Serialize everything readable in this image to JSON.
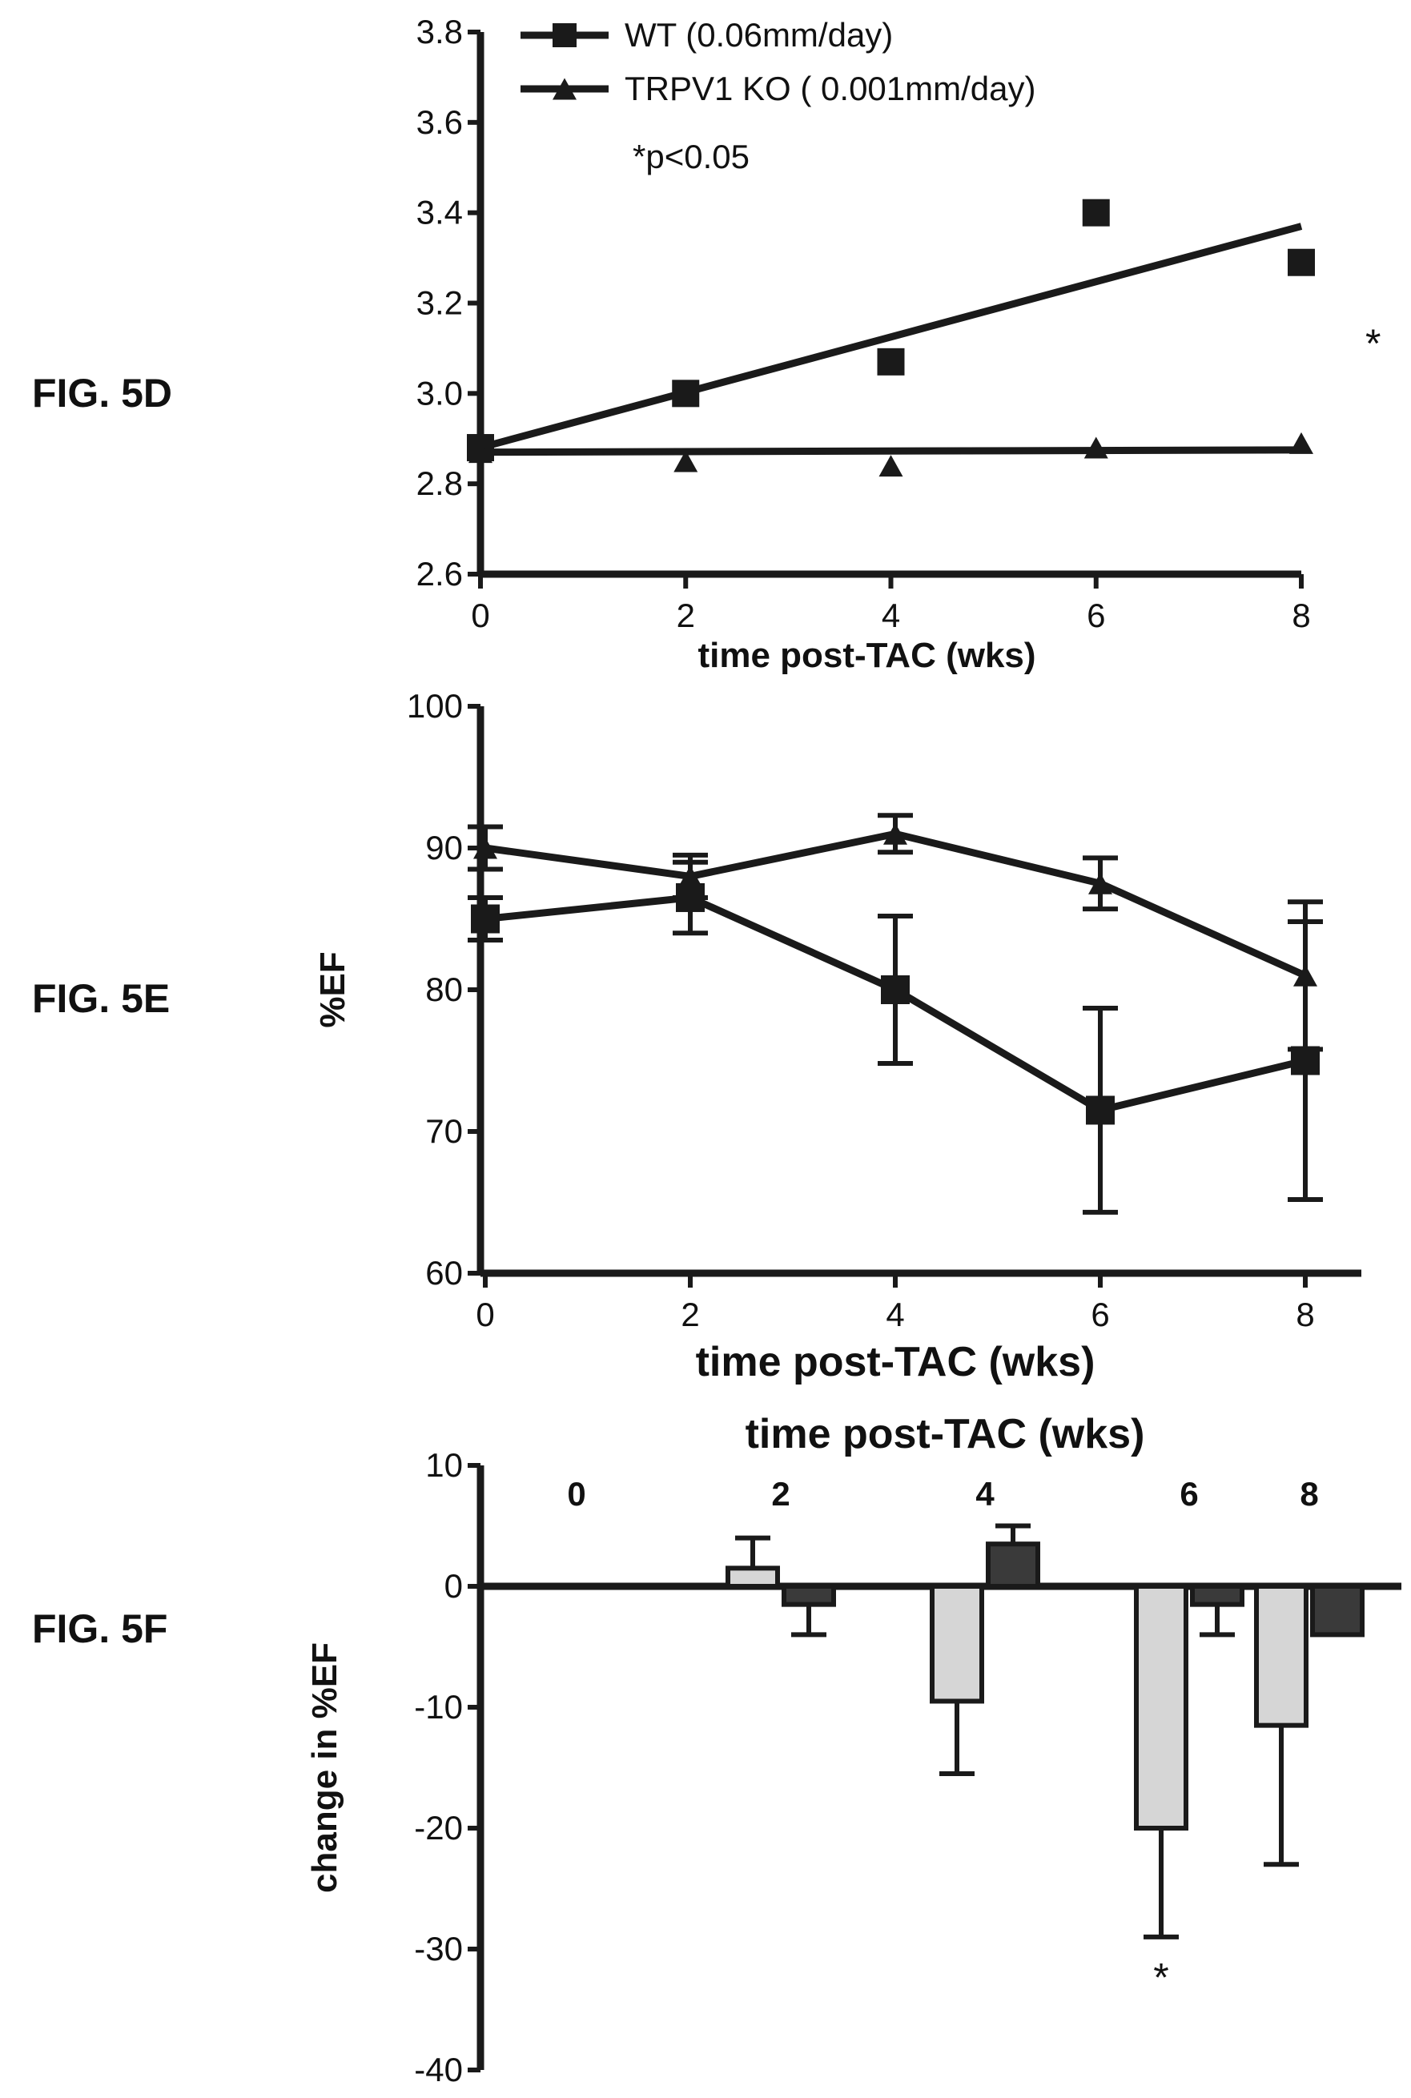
{
  "panels": [
    {
      "id": "5D",
      "label": "FIG. 5D"
    },
    {
      "id": "5E",
      "label": "FIG. 5E"
    },
    {
      "id": "5F",
      "label": "FIG. 5F"
    }
  ],
  "chart_data": [
    {
      "panel": "FIG. 5D",
      "type": "scatter",
      "xlabel": "time post-TAC (wks)",
      "ylabel": "",
      "xlim": [
        0,
        8
      ],
      "ylim": [
        2.6,
        3.8
      ],
      "xticks": [
        0,
        2,
        4,
        6,
        8
      ],
      "yticks": [
        2.6,
        2.8,
        3.0,
        3.2,
        3.4,
        3.6,
        3.8
      ],
      "series": [
        {
          "name": "WT (0.06mm/day)",
          "marker": "square",
          "x": [
            0,
            2,
            4,
            6,
            8
          ],
          "y": [
            2.88,
            3.0,
            3.07,
            3.4,
            3.29
          ],
          "fit": {
            "x": [
              0,
              8
            ],
            "y": [
              2.88,
              3.37
            ]
          }
        },
        {
          "name": "TRPV1 KO ( 0.001mm/day)",
          "marker": "triangle",
          "x": [
            0,
            2,
            4,
            6,
            8
          ],
          "y": [
            2.87,
            2.85,
            2.84,
            2.88,
            2.89
          ],
          "fit": {
            "x": [
              0,
              8
            ],
            "y": [
              2.87,
              2.875
            ]
          }
        }
      ],
      "legend_note": "*p<0.05",
      "annotations": [
        {
          "text": "*",
          "at_x": 8.7,
          "at_y": 3.08
        }
      ]
    },
    {
      "panel": "FIG. 5E",
      "type": "line",
      "xlabel": "time post-TAC (wks)",
      "ylabel": "%EF",
      "xlim": [
        0,
        8
      ],
      "ylim": [
        60,
        100
      ],
      "xticks": [
        0,
        2,
        4,
        6,
        8
      ],
      "yticks": [
        60,
        70,
        80,
        90,
        100
      ],
      "series": [
        {
          "name": "WT",
          "marker": "square",
          "x": [
            0,
            2,
            4,
            6,
            8
          ],
          "y": [
            85,
            86.5,
            80,
            71.5,
            75
          ],
          "err": [
            1.5,
            2.5,
            5.2,
            7.2,
            9.8
          ]
        },
        {
          "name": "TRPV1 KO",
          "marker": "triangle",
          "x": [
            0,
            2,
            4,
            6,
            8
          ],
          "y": [
            90,
            88,
            91,
            87.5,
            81
          ],
          "err": [
            1.5,
            1.5,
            1.3,
            1.8,
            5.2
          ]
        }
      ]
    },
    {
      "panel": "FIG. 5F",
      "type": "bar",
      "xlabel": "time post-TAC (wks)",
      "ylabel": "change in %EF",
      "ylim": [
        -40,
        10
      ],
      "yticks": [
        -40,
        -30,
        -20,
        -10,
        0,
        10
      ],
      "categories": [
        "0",
        "2",
        "4",
        "6",
        "8"
      ],
      "series": [
        {
          "name": "WT",
          "values": [
            0,
            1.5,
            -9.5,
            -20,
            -11.5
          ],
          "err": [
            0,
            2.5,
            6,
            9,
            11.5
          ]
        },
        {
          "name": "TRPV1 KO",
          "values": [
            0,
            -1.5,
            3.5,
            -1.5,
            -4
          ],
          "err": [
            0,
            2.5,
            1.5,
            2.5,
            0
          ]
        }
      ],
      "annotations": [
        {
          "text": "*",
          "category": "6",
          "value": -31.5
        }
      ]
    }
  ]
}
